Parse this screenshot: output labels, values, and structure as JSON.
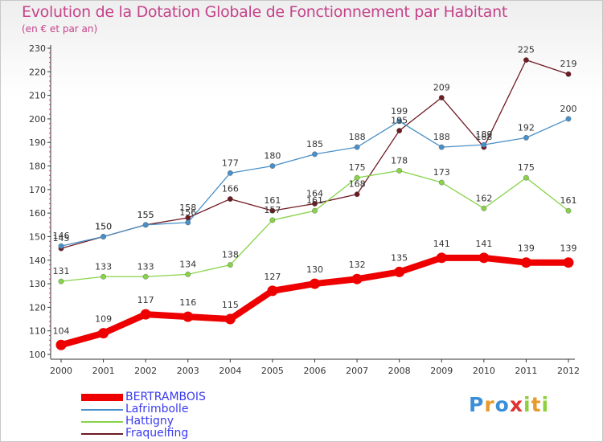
{
  "chart_data": {
    "type": "line",
    "title": "Evolution de la Dotation Globale de Fonctionnement par Habitant",
    "subtitle": "(en € et par an)",
    "x": [
      "2000",
      "2001",
      "2002",
      "2003",
      "2004",
      "2005",
      "2006",
      "2007",
      "2008",
      "2009",
      "2010",
      "2011",
      "2012"
    ],
    "ylim": [
      100,
      230
    ],
    "yticks": [
      100,
      110,
      120,
      130,
      140,
      150,
      160,
      170,
      180,
      190,
      200,
      210,
      220,
      230
    ],
    "grid": false,
    "legend_position": "bottom-left",
    "series": [
      {
        "name": "BERTRAMBOIS",
        "color": "#ee0000",
        "values": [
          104,
          109,
          117,
          116,
          115,
          127,
          130,
          132,
          135,
          141,
          141,
          139,
          139
        ]
      },
      {
        "name": "Lafrimbolle",
        "color": "#4a90c8",
        "values": [
          146,
          150,
          155,
          156,
          177,
          180,
          185,
          188,
          199,
          188,
          189,
          192,
          200
        ]
      },
      {
        "name": "Hattigny",
        "color": "#88d34a",
        "values": [
          131,
          133,
          133,
          134,
          138,
          157,
          161,
          175,
          178,
          173,
          162,
          175,
          161
        ]
      },
      {
        "name": "Fraquelfing",
        "color": "#6e1a22",
        "values": [
          145,
          150,
          155,
          158,
          166,
          161,
          164,
          168,
          195,
          209,
          188,
          225,
          219
        ]
      }
    ],
    "point_labels": [
      {
        "series": "BERTRAMBOIS",
        "labels": [
          "104",
          "109",
          "117",
          "116",
          "115",
          "127",
          "130",
          "132",
          "135",
          "141",
          "141",
          "139",
          "139"
        ]
      },
      {
        "series": "Lafrimbolle",
        "labels": [
          "146",
          "150",
          "155",
          "156",
          "177",
          "180",
          "185",
          "188",
          "199",
          "188",
          "189",
          "192",
          "200"
        ]
      },
      {
        "series": "Hattigny",
        "labels": [
          "131",
          "133",
          "133",
          "134",
          "138",
          "157",
          "161",
          "175",
          "178",
          "173",
          "162",
          "175",
          "161"
        ]
      },
      {
        "series": "Fraquelfing",
        "labels": [
          "145",
          "150",
          "155",
          "158",
          "166",
          "161",
          "164",
          "168",
          "195",
          "209",
          "188",
          "225",
          "219"
        ]
      }
    ]
  },
  "logo": {
    "letters": [
      {
        "char": "P",
        "color": "#3b8fd8"
      },
      {
        "char": "r",
        "color": "#e99a2a"
      },
      {
        "char": "o",
        "color": "#3b8fd8"
      },
      {
        "char": "x",
        "color": "#e03030"
      },
      {
        "char": "i",
        "color": "#8ecf3d"
      },
      {
        "char": "t",
        "color": "#e99a2a"
      },
      {
        "char": "i",
        "color": "#8ecf3d"
      }
    ]
  }
}
